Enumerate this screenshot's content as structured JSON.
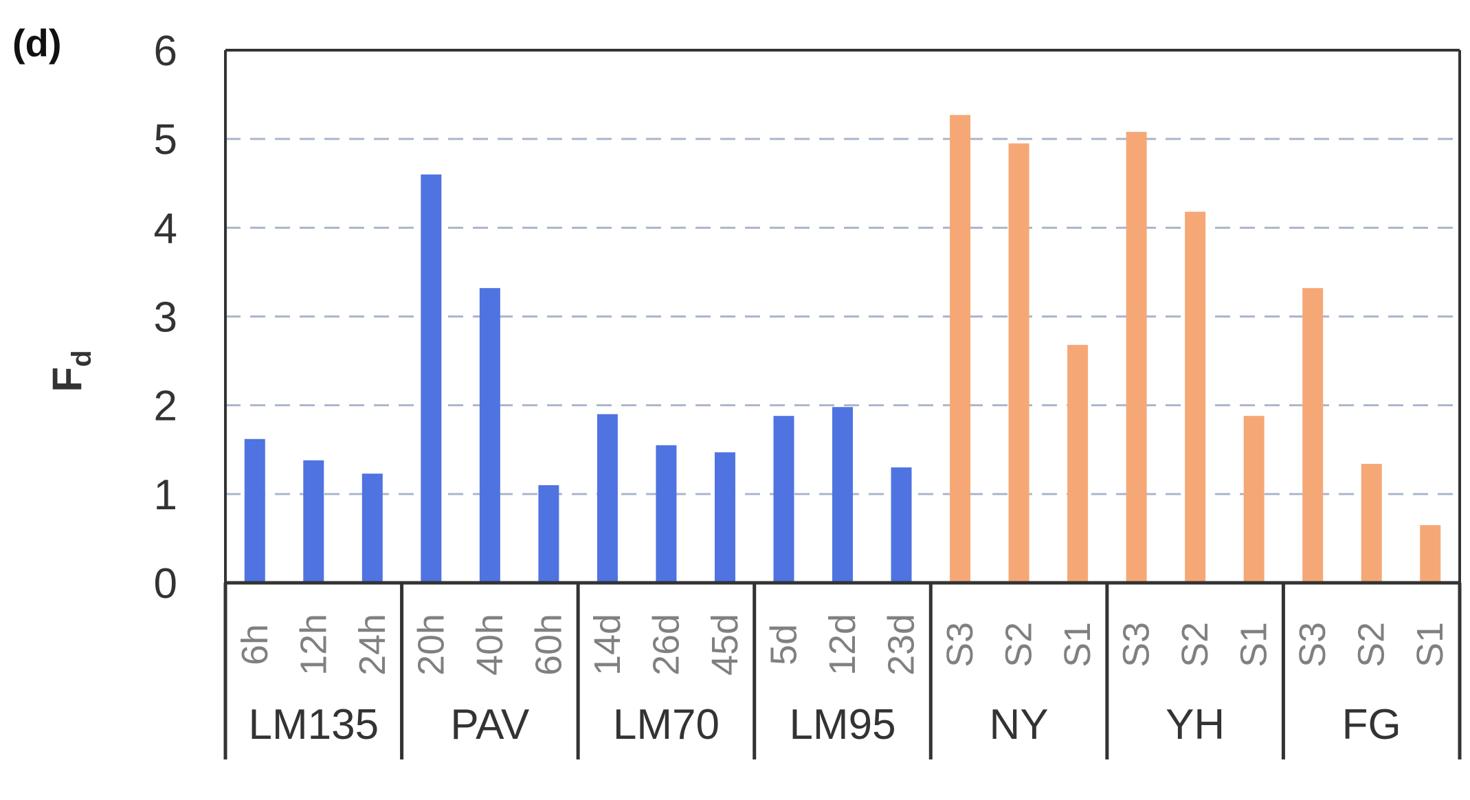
{
  "panel_label": "(d)",
  "chart_data": {
    "type": "bar",
    "ylabel": "F",
    "ylabel_subscript": "d",
    "ylim": [
      0,
      6
    ],
    "yticks": [
      "0",
      "1",
      "2",
      "3",
      "4",
      "5",
      "6"
    ],
    "grid": "horizontal dashed at y = 1..5",
    "colors": {
      "blue": "#4f73e0",
      "orange": "#f5a876",
      "grid": "#a9b6cc",
      "axis": "#333333",
      "tick_text_gray": "#808080",
      "text": "#333333"
    },
    "groups": [
      {
        "name": "LM135",
        "color": "blue",
        "categories": [
          "6h",
          "12h",
          "24h"
        ],
        "values": [
          1.62,
          1.38,
          1.23
        ]
      },
      {
        "name": "PAV",
        "color": "blue",
        "categories": [
          "20h",
          "40h",
          "60h"
        ],
        "values": [
          4.6,
          3.32,
          1.1
        ]
      },
      {
        "name": "LM70",
        "color": "blue",
        "categories": [
          "14d",
          "26d",
          "45d"
        ],
        "values": [
          1.9,
          1.55,
          1.47
        ]
      },
      {
        "name": "LM95",
        "color": "blue",
        "categories": [
          "5d",
          "12d",
          "23d"
        ],
        "values": [
          1.88,
          1.98,
          1.3
        ]
      },
      {
        "name": "NY",
        "color": "orange",
        "categories": [
          "S3",
          "S2",
          "S1"
        ],
        "values": [
          5.27,
          4.95,
          2.68
        ]
      },
      {
        "name": "YH",
        "color": "orange",
        "categories": [
          "S3",
          "S2",
          "S1"
        ],
        "values": [
          5.08,
          4.18,
          1.88
        ]
      },
      {
        "name": "FG",
        "color": "orange",
        "categories": [
          "S3",
          "S2",
          "S1"
        ],
        "values": [
          3.32,
          1.34,
          0.65
        ]
      }
    ]
  }
}
